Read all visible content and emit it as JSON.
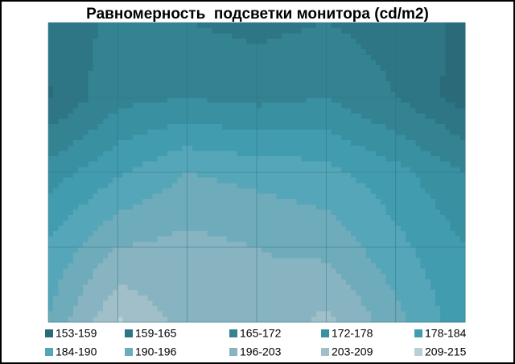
{
  "chart_data": {
    "type": "contour",
    "title": "Равномерность  подсветки монитора (cd/m2)",
    "levels": [
      153,
      159,
      165,
      172,
      178,
      184,
      190,
      196,
      203,
      209,
      215
    ],
    "bands": [
      {
        "label": "153-159",
        "color": "#2a6a79"
      },
      {
        "label": "159-165",
        "color": "#2e7686"
      },
      {
        "label": "165-172",
        "color": "#338393"
      },
      {
        "label": "172-178",
        "color": "#3990a1"
      },
      {
        "label": "178-184",
        "color": "#429caf"
      },
      {
        "label": "184-190",
        "color": "#55a6b8"
      },
      {
        "label": "190-196",
        "color": "#6eacbb"
      },
      {
        "label": "196-203",
        "color": "#88b4c1"
      },
      {
        "label": "203-209",
        "color": "#a0bfc8"
      },
      {
        "label": "209-215",
        "color": "#b8cfd5"
      }
    ],
    "grid_values": [
      [
        162,
        166,
        165,
        163,
        165,
        162,
        158
      ],
      [
        158,
        170,
        172,
        170,
        172,
        165,
        156
      ],
      [
        175,
        183,
        190,
        188,
        186,
        180,
        172
      ],
      [
        185,
        196,
        198,
        196,
        194,
        186,
        178
      ],
      [
        190,
        210,
        200,
        198,
        205,
        192,
        180
      ]
    ]
  }
}
